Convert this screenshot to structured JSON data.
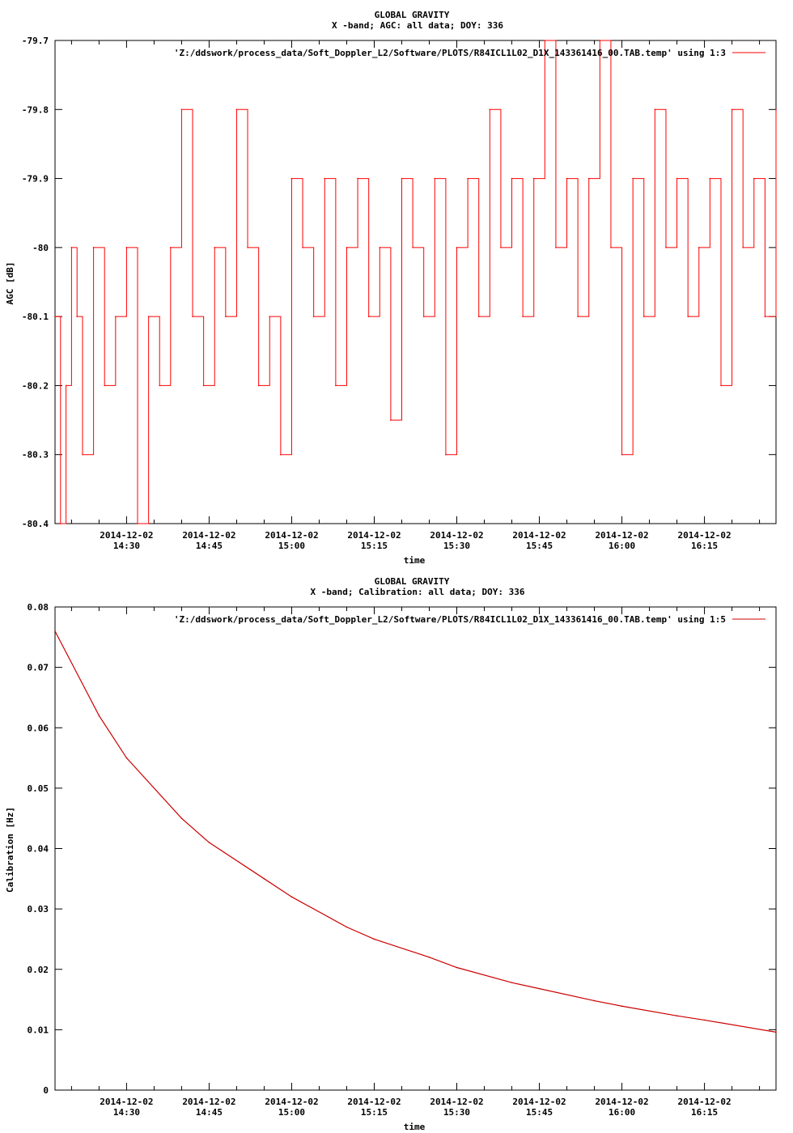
{
  "chart_data": [
    {
      "type": "line",
      "title": "GLOBAL GRAVITY",
      "subtitle": "X -band; AGC: all data; DOY: 336",
      "xlabel": "time",
      "ylabel": "AGC [dB]",
      "legend_position": "top-right",
      "grid": false,
      "xlim": [
        "14:17",
        "16:28"
      ],
      "ylim": [
        -80.4,
        -79.7
      ],
      "x_ticks": [
        {
          "value": "14:30",
          "label_date": "2014-12-02",
          "label_time": "14:30"
        },
        {
          "value": "14:45",
          "label_date": "2014-12-02",
          "label_time": "14:45"
        },
        {
          "value": "15:00",
          "label_date": "2014-12-02",
          "label_time": "15:00"
        },
        {
          "value": "15:15",
          "label_date": "2014-12-02",
          "label_time": "15:15"
        },
        {
          "value": "15:30",
          "label_date": "2014-12-02",
          "label_time": "15:30"
        },
        {
          "value": "15:45",
          "label_date": "2014-12-02",
          "label_time": "15:45"
        },
        {
          "value": "16:00",
          "label_date": "2014-12-02",
          "label_time": "16:00"
        },
        {
          "value": "16:15",
          "label_date": "2014-12-02",
          "label_time": "16:15"
        }
      ],
      "y_ticks": [
        "-79.7",
        "-79.8",
        "-79.9",
        "-80",
        "-80.1",
        "-80.2",
        "-80.3",
        "-80.4"
      ],
      "series": [
        {
          "name": "'Z:/ddswork/process_data/Soft_Doppler_L2/Software/PLOTS/R84ICL1L02_D1X_143361416_00.TAB.temp' using 1:3",
          "color": "#ff0000",
          "x": [
            "14:17",
            "14:18",
            "14:19",
            "14:20",
            "14:21",
            "14:22",
            "14:24",
            "14:26",
            "14:28",
            "14:30",
            "14:32",
            "14:34",
            "14:36",
            "14:38",
            "14:40",
            "14:42",
            "14:44",
            "14:46",
            "14:48",
            "14:50",
            "14:52",
            "14:54",
            "14:56",
            "14:58",
            "15:00",
            "15:02",
            "15:04",
            "15:06",
            "15:08",
            "15:10",
            "15:12",
            "15:14",
            "15:16",
            "15:18",
            "15:20",
            "15:22",
            "15:24",
            "15:26",
            "15:28",
            "15:30",
            "15:32",
            "15:34",
            "15:36",
            "15:38",
            "15:40",
            "15:42",
            "15:44",
            "15:46",
            "15:48",
            "15:50",
            "15:52",
            "15:54",
            "15:56",
            "15:58",
            "16:00",
            "16:02",
            "16:04",
            "16:06",
            "16:08",
            "16:10",
            "16:12",
            "16:14",
            "16:16",
            "16:18",
            "16:20",
            "16:22",
            "16:24",
            "16:26",
            "16:28"
          ],
          "y": [
            -80.1,
            -80.4,
            -80.2,
            -80.0,
            -80.1,
            -80.3,
            -80.0,
            -80.2,
            -80.1,
            -80.0,
            -80.4,
            -80.1,
            -80.2,
            -80.0,
            -79.8,
            -80.1,
            -80.2,
            -80.0,
            -80.1,
            -79.8,
            -80.0,
            -80.2,
            -80.1,
            -80.3,
            -79.9,
            -80.0,
            -80.1,
            -79.9,
            -80.2,
            -80.0,
            -79.9,
            -80.1,
            -80.0,
            -80.25,
            -79.9,
            -80.0,
            -80.1,
            -79.9,
            -80.3,
            -80.0,
            -79.9,
            -80.1,
            -79.8,
            -80.0,
            -79.9,
            -80.1,
            -79.9,
            -79.7,
            -80.0,
            -79.9,
            -80.1,
            -79.9,
            -79.7,
            -80.0,
            -80.3,
            -79.9,
            -80.1,
            -79.8,
            -80.0,
            -79.9,
            -80.1,
            -80.0,
            -79.9,
            -80.2,
            -79.8,
            -80.0,
            -79.9,
            -80.1,
            -79.8
          ]
        }
      ]
    },
    {
      "type": "line",
      "title": "GLOBAL GRAVITY",
      "subtitle": "X -band; Calibration: all data; DOY: 336",
      "xlabel": "time",
      "ylabel": "Calibration [Hz]",
      "legend_position": "top-right",
      "grid": false,
      "xlim": [
        "14:17",
        "16:28"
      ],
      "ylim": [
        0,
        0.08
      ],
      "x_ticks": [
        {
          "value": "14:30",
          "label_date": "2014-12-02",
          "label_time": "14:30"
        },
        {
          "value": "14:45",
          "label_date": "2014-12-02",
          "label_time": "14:45"
        },
        {
          "value": "15:00",
          "label_date": "2014-12-02",
          "label_time": "15:00"
        },
        {
          "value": "15:15",
          "label_date": "2014-12-02",
          "label_time": "15:15"
        },
        {
          "value": "15:30",
          "label_date": "2014-12-02",
          "label_time": "15:30"
        },
        {
          "value": "15:45",
          "label_date": "2014-12-02",
          "label_time": "15:45"
        },
        {
          "value": "16:00",
          "label_date": "2014-12-02",
          "label_time": "16:00"
        },
        {
          "value": "16:15",
          "label_date": "2014-12-02",
          "label_time": "16:15"
        }
      ],
      "y_ticks": [
        "0.08",
        "0.07",
        "0.06",
        "0.05",
        "0.04",
        "0.03",
        "0.02",
        "0.01",
        "0"
      ],
      "series": [
        {
          "name": "'Z:/ddswork/process_data/Soft_Doppler_L2/Software/PLOTS/R84ICL1L02_D1X_143361416_00.TAB.temp' using 1:5",
          "color": "#cc0000",
          "x": [
            "14:17",
            "14:25",
            "14:30",
            "14:40",
            "14:45",
            "14:55",
            "15:00",
            "15:10",
            "15:15",
            "15:25",
            "15:30",
            "15:40",
            "15:45",
            "15:55",
            "16:00",
            "16:10",
            "16:15",
            "16:28"
          ],
          "y": [
            0.076,
            0.062,
            0.055,
            0.045,
            0.041,
            0.035,
            0.032,
            0.027,
            0.025,
            0.022,
            0.0203,
            0.0178,
            0.0168,
            0.0148,
            0.0139,
            0.0123,
            0.0116,
            0.0096
          ]
        }
      ]
    }
  ]
}
